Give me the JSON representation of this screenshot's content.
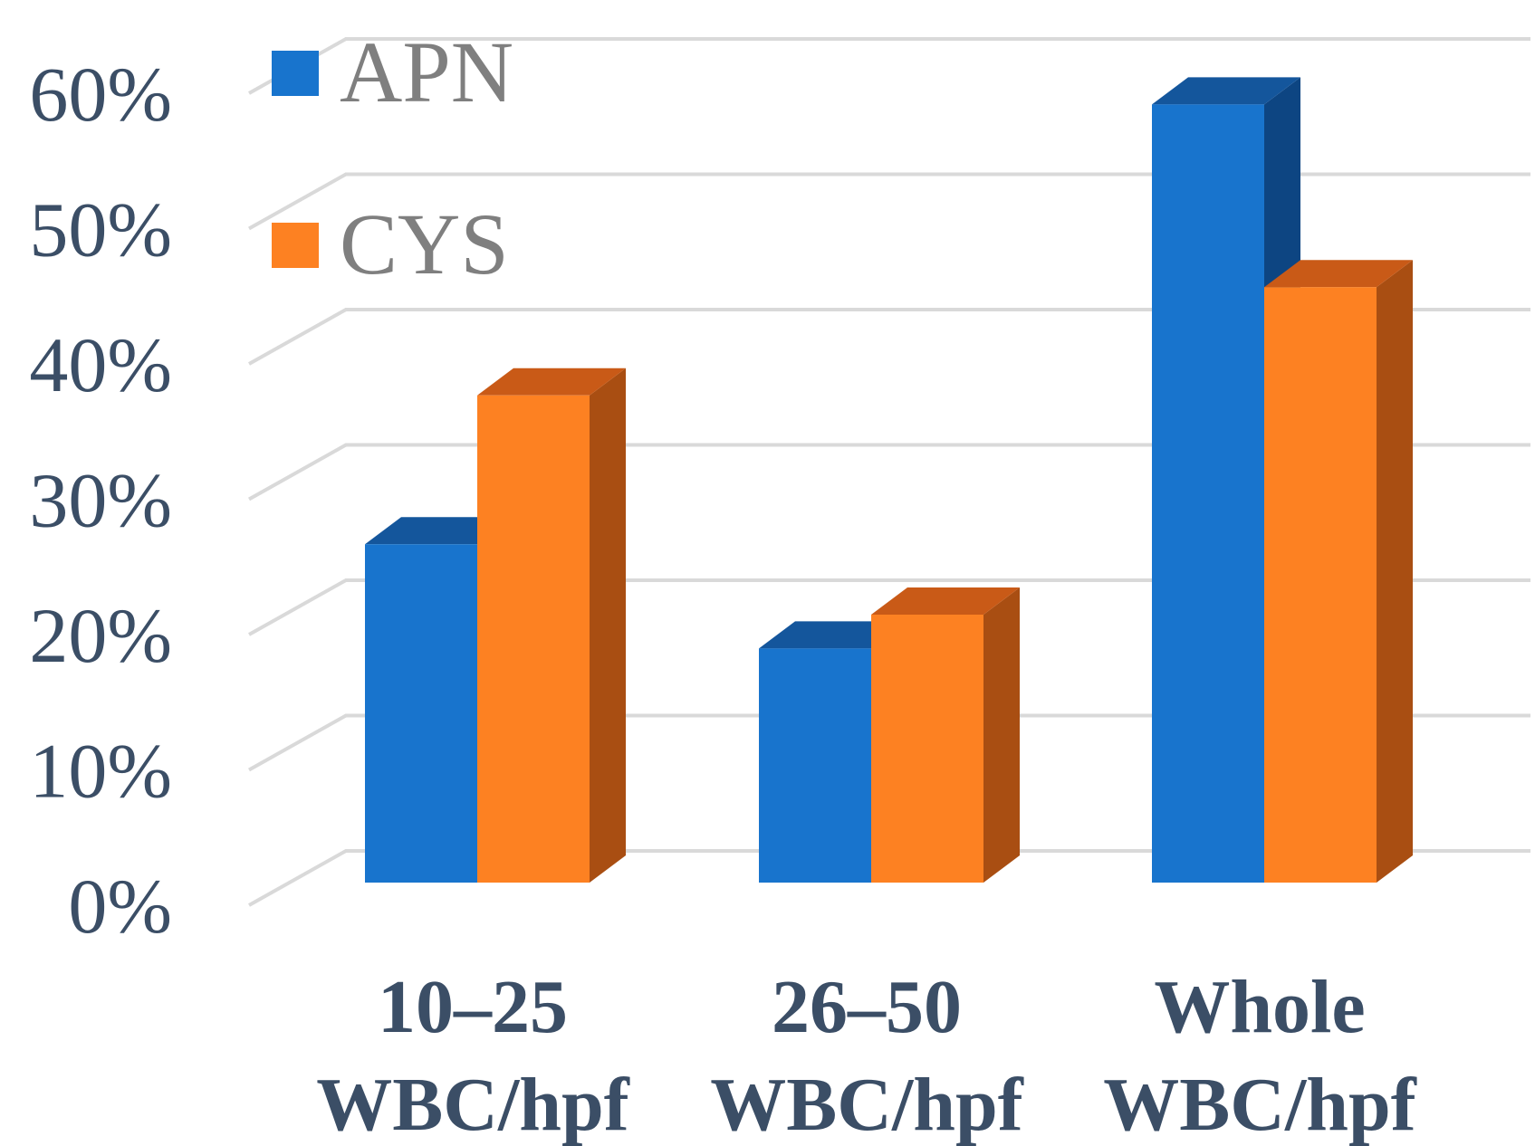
{
  "chart_data": {
    "type": "bar",
    "style": "3d-clustered-column",
    "categories": [
      [
        "10–25",
        "WBC/hpf"
      ],
      [
        "26–50",
        "WBC/hpf"
      ],
      [
        "Whole",
        "WBC/hpf"
      ]
    ],
    "series": [
      {
        "name": "APN",
        "values": [
          25,
          17.3,
          57.5
        ],
        "color": "#1874cd",
        "top_color": "#14569c",
        "side_color": "#0d4582"
      },
      {
        "name": "CYS",
        "values": [
          36,
          19.8,
          44
        ],
        "color": "#fd8122",
        "top_color": "#c95a17",
        "side_color": "#a94e12"
      }
    ],
    "y_ticks": [
      "0%",
      "10%",
      "20%",
      "30%",
      "40%",
      "50%",
      "60%"
    ],
    "ylim": [
      0,
      60
    ],
    "grid": true,
    "legend": {
      "position": "top-left",
      "entries": [
        "APN",
        "CYS"
      ]
    },
    "title": "",
    "xlabel": "",
    "ylabel": ""
  }
}
